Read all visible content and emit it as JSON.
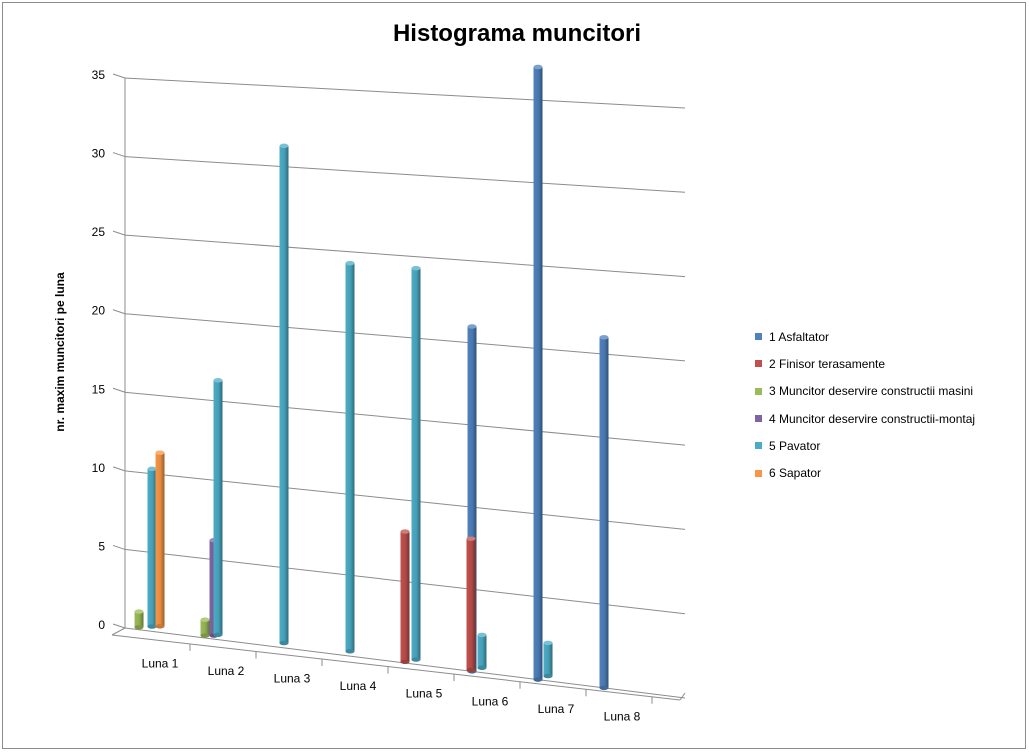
{
  "chart_data": {
    "type": "bar",
    "title": "Histograma muncitori",
    "xlabel": "",
    "ylabel": "nr. maxim muncitori pe luna",
    "categories": [
      "Luna 1",
      "Luna 2",
      "Luna 3",
      "Luna 4",
      "Luna 5",
      "Luna 6",
      "Luna 7",
      "Luna 8"
    ],
    "ylim": [
      0,
      35
    ],
    "yticks": [
      "0",
      "5",
      "10",
      "15",
      "20",
      "25",
      "30",
      "35"
    ],
    "grid": true,
    "legend_position": "right",
    "series": [
      {
        "name": "1 Asfaltator",
        "color": "#4f81bd",
        "values": [
          0,
          0,
          0,
          0,
          0,
          21,
          37,
          21
        ]
      },
      {
        "name": "2 Finisor terasamente",
        "color": "#c0504d",
        "values": [
          0,
          0,
          0,
          0,
          8,
          8,
          0,
          0
        ]
      },
      {
        "name": "3 Muncitor deservire constructii masini",
        "color": "#9bbb59",
        "values": [
          1,
          1,
          0,
          0,
          0,
          0,
          0,
          0
        ]
      },
      {
        "name": "4 Muncitor deservire constructii-montaj",
        "color": "#8064a2",
        "values": [
          0,
          6,
          0,
          0,
          0,
          0,
          0,
          0
        ]
      },
      {
        "name": "5 Pavator",
        "color": "#4bacc6",
        "values": [
          10,
          16,
          31,
          24,
          24,
          2,
          2,
          0
        ]
      },
      {
        "name": "6 Sapator",
        "color": "#f79646",
        "values": [
          11,
          0,
          0,
          0,
          0,
          0,
          0,
          0
        ]
      }
    ]
  }
}
